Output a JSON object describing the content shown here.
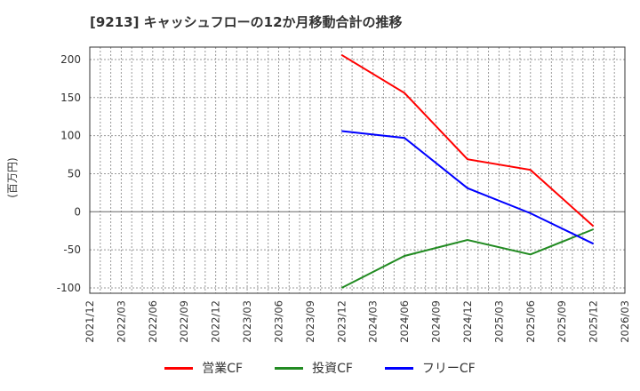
{
  "title": "[9213]  キャッシュフローの12か月移動合計の推移",
  "y_axis_label": "(百万円)",
  "chart_data": {
    "type": "line",
    "title": "[9213]  キャッシュフローの12か月移動合計の推移",
    "xlabel": "",
    "ylabel": "(百万円)",
    "ylim": [
      -105,
      215
    ],
    "yticks": [
      200,
      150,
      100,
      50,
      0,
      -50,
      -100
    ],
    "xticks": [
      "2021/12",
      "2022/03",
      "2022/06",
      "2022/09",
      "2022/12",
      "2023/03",
      "2023/06",
      "2023/09",
      "2023/12",
      "2024/03",
      "2024/06",
      "2024/09",
      "2024/12",
      "2025/03",
      "2025/06",
      "2025/09",
      "2025/12",
      "2026/03"
    ],
    "grid": true,
    "legend_position": "bottom",
    "x": [
      "2023/12",
      "2024/06",
      "2024/12",
      "2025/06",
      "2025/12"
    ],
    "series": [
      {
        "name": "営業CF",
        "color": "#ff0000",
        "values": [
          206,
          156,
          69,
          55,
          -19
        ]
      },
      {
        "name": "投資CF",
        "color": "#228b22",
        "values": [
          -100,
          -58,
          -37,
          -56,
          -23
        ]
      },
      {
        "name": "フリーCF",
        "color": "#0000ff",
        "values": [
          106,
          97,
          31,
          -2,
          -42
        ]
      }
    ]
  },
  "legend": {
    "items": [
      {
        "label": "営業CF",
        "color": "#ff0000"
      },
      {
        "label": "投資CF",
        "color": "#228b22"
      },
      {
        "label": "フリーCF",
        "color": "#0000ff"
      }
    ]
  }
}
